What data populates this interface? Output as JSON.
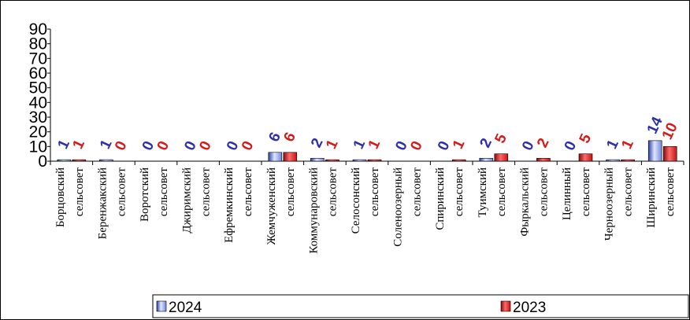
{
  "chart_data": {
    "type": "bar",
    "categories": [
      [
        "Борцовский",
        "сельсовет"
      ],
      [
        "Беренжакский",
        "сельсовет"
      ],
      [
        "Воротский",
        "сельсовет"
      ],
      [
        "Джиримский",
        "сельсовет"
      ],
      [
        "Ефремкинский",
        "сельсовет"
      ],
      [
        "Жемчуженский",
        "сельсовет"
      ],
      [
        "Коммунаровский",
        "сельсовет"
      ],
      [
        "Селосонский",
        "сельсовет"
      ],
      [
        "Соленоозерный",
        "сельсовет"
      ],
      [
        "Спиринский",
        "сельсовет"
      ],
      [
        "Туимский",
        "сельсовет"
      ],
      [
        "Фыркальский",
        "сельсовет"
      ],
      [
        "Целинный",
        "сельсовет"
      ],
      [
        "Черноозерный",
        "сельсовет"
      ],
      [
        "Ширинский",
        "сельсовет"
      ]
    ],
    "series": [
      {
        "name": "2024",
        "values": [
          1,
          1,
          0,
          0,
          0,
          6,
          2,
          1,
          0,
          0,
          2,
          0,
          0,
          1,
          14
        ],
        "color": "#2f2fa8",
        "fill": "#b8c8f0"
      },
      {
        "name": "2023",
        "values": [
          1,
          0,
          0,
          0,
          0,
          6,
          1,
          1,
          0,
          1,
          5,
          2,
          5,
          1,
          10
        ],
        "color": "#d41a1a",
        "fill": "#e03030"
      }
    ],
    "yticks": [
      0,
      10,
      20,
      30,
      40,
      50,
      60,
      70,
      80,
      90
    ],
    "ylim": [
      0,
      90
    ],
    "grid": false,
    "legend_position": "bottom",
    "title": "",
    "xlabel": "",
    "ylabel": ""
  }
}
